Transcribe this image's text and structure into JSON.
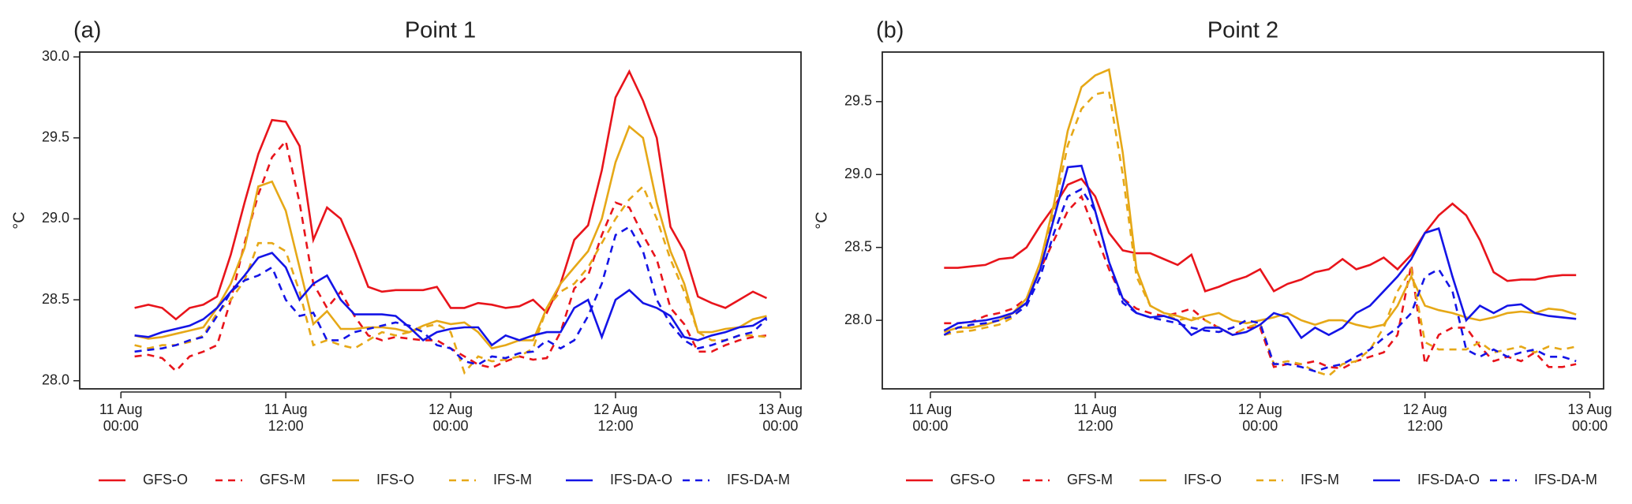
{
  "chart_data": [
    {
      "type": "line",
      "panel_label": "(a)",
      "title": "Point 1",
      "ylabel": "°C",
      "x": [
        "11 Aug 01:00",
        "11 Aug 02:00",
        "11 Aug 03:00",
        "11 Aug 04:00",
        "11 Aug 05:00",
        "11 Aug 06:00",
        "11 Aug 07:00",
        "11 Aug 08:00",
        "11 Aug 09:00",
        "11 Aug 10:00",
        "11 Aug 11:00",
        "11 Aug 12:00",
        "11 Aug 13:00",
        "11 Aug 14:00",
        "11 Aug 15:00",
        "11 Aug 16:00",
        "11 Aug 17:00",
        "11 Aug 18:00",
        "11 Aug 19:00",
        "11 Aug 20:00",
        "11 Aug 21:00",
        "11 Aug 22:00",
        "11 Aug 23:00",
        "12 Aug 00:00",
        "12 Aug 01:00",
        "12 Aug 02:00",
        "12 Aug 03:00",
        "12 Aug 04:00",
        "12 Aug 05:00",
        "12 Aug 06:00",
        "12 Aug 07:00",
        "12 Aug 08:00",
        "12 Aug 09:00",
        "12 Aug 10:00",
        "12 Aug 11:00",
        "12 Aug 12:00",
        "12 Aug 13:00",
        "12 Aug 14:00",
        "12 Aug 15:00",
        "12 Aug 16:00",
        "12 Aug 17:00",
        "12 Aug 18:00",
        "12 Aug 19:00",
        "12 Aug 20:00",
        "12 Aug 21:00",
        "12 Aug 22:00",
        "12 Aug 23:00"
      ],
      "xlim": [
        "10 Aug 21:00",
        "13 Aug 01:30"
      ],
      "xticks": [
        "11 Aug 00:00",
        "11 Aug 12:00",
        "12 Aug 00:00",
        "12 Aug 12:00",
        "13 Aug 00:00"
      ],
      "ylim": [
        27.95,
        30.03
      ],
      "yticks": [
        {
          "value": 28,
          "label": "28.0"
        },
        28.5,
        {
          "value": 29,
          "label": "29.0"
        },
        29.5,
        {
          "value": 30,
          "label": "30.0"
        }
      ],
      "series": [
        {
          "name": "GFS-O",
          "color": "#e8141b",
          "linestyle": "solid",
          "values": [
            28.45,
            28.47,
            28.45,
            28.38,
            28.45,
            28.47,
            28.52,
            28.78,
            29.1,
            29.4,
            29.61,
            29.6,
            29.45,
            28.87,
            29.07,
            29.0,
            28.8,
            28.58,
            28.55,
            28.56,
            28.56,
            28.56,
            28.58,
            28.45,
            28.45,
            28.48,
            28.47,
            28.45,
            28.46,
            28.5,
            28.42,
            28.6,
            28.87,
            28.96,
            29.3,
            29.75,
            29.91,
            29.73,
            29.5,
            28.95,
            28.8,
            28.52,
            28.48,
            28.45,
            28.5,
            28.55,
            28.51
          ]
        },
        {
          "name": "GFS-M",
          "color": "#e8141b",
          "linestyle": "dashed",
          "values": [
            28.15,
            28.16,
            28.14,
            28.06,
            28.15,
            28.18,
            28.22,
            28.5,
            28.85,
            29.15,
            29.38,
            29.48,
            29.1,
            28.6,
            28.45,
            28.55,
            28.4,
            28.28,
            28.25,
            28.27,
            28.26,
            28.25,
            28.25,
            28.2,
            28.15,
            28.1,
            28.08,
            28.12,
            28.15,
            28.13,
            28.14,
            28.3,
            28.57,
            28.65,
            28.9,
            29.1,
            29.07,
            28.9,
            28.75,
            28.45,
            28.35,
            28.18,
            28.18,
            28.22,
            28.25,
            28.27,
            28.28
          ]
        },
        {
          "name": "IFS-O",
          "color": "#e6a817",
          "linestyle": "solid",
          "values": [
            28.28,
            28.26,
            28.27,
            28.29,
            28.31,
            28.33,
            28.45,
            28.6,
            28.82,
            29.2,
            29.23,
            29.05,
            28.7,
            28.35,
            28.43,
            28.32,
            28.32,
            28.33,
            28.33,
            28.32,
            28.3,
            28.34,
            28.37,
            28.35,
            28.36,
            28.3,
            28.2,
            28.22,
            28.25,
            28.25,
            28.45,
            28.6,
            28.7,
            28.8,
            29.0,
            29.35,
            29.57,
            29.5,
            29.1,
            28.8,
            28.6,
            28.3,
            28.3,
            28.32,
            28.33,
            28.38,
            28.4
          ]
        },
        {
          "name": "IFS-M",
          "color": "#e6a817",
          "linestyle": "dashed",
          "values": [
            28.22,
            28.2,
            28.22,
            28.22,
            28.24,
            28.28,
            28.42,
            28.5,
            28.62,
            28.85,
            28.85,
            28.8,
            28.55,
            28.22,
            28.25,
            28.22,
            28.2,
            28.25,
            28.3,
            28.28,
            28.3,
            28.33,
            28.35,
            28.3,
            28.05,
            28.15,
            28.12,
            28.13,
            28.15,
            28.2,
            28.45,
            28.55,
            28.6,
            28.7,
            28.85,
            29.0,
            29.12,
            29.2,
            29.0,
            28.75,
            28.55,
            28.3,
            28.25,
            28.25,
            28.28,
            28.28,
            28.27
          ]
        },
        {
          "name": "IFS-DA-O",
          "color": "#1414e6",
          "linestyle": "solid",
          "values": [
            28.28,
            28.27,
            28.3,
            28.32,
            28.34,
            28.38,
            28.45,
            28.55,
            28.65,
            28.76,
            28.79,
            28.7,
            28.5,
            28.6,
            28.65,
            28.5,
            28.41,
            28.41,
            28.41,
            28.4,
            28.33,
            28.25,
            28.3,
            28.32,
            28.33,
            28.33,
            28.22,
            28.28,
            28.25,
            28.28,
            28.3,
            28.3,
            28.45,
            28.5,
            28.27,
            28.5,
            28.56,
            28.48,
            28.45,
            28.4,
            28.27,
            28.25,
            28.28,
            28.3,
            28.33,
            28.34,
            28.39
          ]
        },
        {
          "name": "IFS-DA-M",
          "color": "#1414e6",
          "linestyle": "dashed",
          "values": [
            28.18,
            28.19,
            28.2,
            28.22,
            28.25,
            28.27,
            28.4,
            28.55,
            28.62,
            28.65,
            28.7,
            28.5,
            28.4,
            28.42,
            28.25,
            28.25,
            28.3,
            28.32,
            28.34,
            28.36,
            28.34,
            28.3,
            28.22,
            28.2,
            28.12,
            28.1,
            28.15,
            28.14,
            28.17,
            28.18,
            28.25,
            28.2,
            28.25,
            28.4,
            28.6,
            28.9,
            28.95,
            28.8,
            28.5,
            28.35,
            28.25,
            28.2,
            28.22,
            28.25,
            28.28,
            28.3,
            28.38
          ]
        }
      ]
    },
    {
      "type": "line",
      "panel_label": "(b)",
      "title": "Point 2",
      "ylabel": "°C",
      "x": [
        "11 Aug 01:00",
        "11 Aug 02:00",
        "11 Aug 03:00",
        "11 Aug 04:00",
        "11 Aug 05:00",
        "11 Aug 06:00",
        "11 Aug 07:00",
        "11 Aug 08:00",
        "11 Aug 09:00",
        "11 Aug 10:00",
        "11 Aug 11:00",
        "11 Aug 12:00",
        "11 Aug 13:00",
        "11 Aug 14:00",
        "11 Aug 15:00",
        "11 Aug 16:00",
        "11 Aug 17:00",
        "11 Aug 18:00",
        "11 Aug 19:00",
        "11 Aug 20:00",
        "11 Aug 21:00",
        "11 Aug 22:00",
        "11 Aug 23:00",
        "12 Aug 00:00",
        "12 Aug 01:00",
        "12 Aug 02:00",
        "12 Aug 03:00",
        "12 Aug 04:00",
        "12 Aug 05:00",
        "12 Aug 06:00",
        "12 Aug 07:00",
        "12 Aug 08:00",
        "12 Aug 09:00",
        "12 Aug 10:00",
        "12 Aug 11:00",
        "12 Aug 12:00",
        "12 Aug 13:00",
        "12 Aug 14:00",
        "12 Aug 15:00",
        "12 Aug 16:00",
        "12 Aug 17:00",
        "12 Aug 18:00",
        "12 Aug 19:00",
        "12 Aug 20:00",
        "12 Aug 21:00",
        "12 Aug 22:00",
        "12 Aug 23:00"
      ],
      "xlim": [
        "10 Aug 20:30",
        "13 Aug 01:00"
      ],
      "xticks": [
        "11 Aug 00:00",
        "11 Aug 12:00",
        "12 Aug 00:00",
        "12 Aug 12:00",
        "13 Aug 00:00"
      ],
      "ylim": [
        27.53,
        29.84
      ],
      "yticks": [
        {
          "value": 28,
          "label": "28.0"
        },
        28.5,
        {
          "value": 29,
          "label": "29.0"
        },
        29.5
      ],
      "series": [
        {
          "name": "GFS-O",
          "color": "#e8141b",
          "linestyle": "solid",
          "values": [
            28.36,
            28.36,
            28.37,
            28.38,
            28.42,
            28.43,
            28.5,
            28.65,
            28.78,
            28.93,
            28.97,
            28.85,
            28.6,
            28.48,
            28.46,
            28.46,
            28.42,
            28.38,
            28.45,
            28.2,
            28.23,
            28.27,
            28.3,
            28.35,
            28.2,
            28.25,
            28.28,
            28.33,
            28.35,
            28.42,
            28.35,
            28.38,
            28.43,
            28.35,
            28.45,
            28.6,
            28.72,
            28.8,
            28.72,
            28.55,
            28.33,
            28.27,
            28.28,
            28.28,
            28.3,
            28.31,
            28.31
          ]
        },
        {
          "name": "GFS-M",
          "color": "#e8141b",
          "linestyle": "dashed",
          "values": [
            27.98,
            27.98,
            27.99,
            28.03,
            28.05,
            28.08,
            28.15,
            28.35,
            28.55,
            28.75,
            28.85,
            28.6,
            28.35,
            28.15,
            28.08,
            28.05,
            28.03,
            28.05,
            28.08,
            28.0,
            27.95,
            27.9,
            27.95,
            27.95,
            27.68,
            27.7,
            27.7,
            27.72,
            27.68,
            27.67,
            27.72,
            27.75,
            27.78,
            27.9,
            28.38,
            27.7,
            27.9,
            27.95,
            27.95,
            27.82,
            27.72,
            27.75,
            27.72,
            27.78,
            27.68,
            27.68,
            27.7
          ]
        },
        {
          "name": "IFS-O",
          "color": "#e6a817",
          "linestyle": "solid",
          "values": [
            27.92,
            27.95,
            27.95,
            27.97,
            28.0,
            28.05,
            28.15,
            28.4,
            28.8,
            29.3,
            29.6,
            29.68,
            29.72,
            29.15,
            28.35,
            28.1,
            28.05,
            28.03,
            28.0,
            28.03,
            28.05,
            28.0,
            27.98,
            28.0,
            28.02,
            28.05,
            28.0,
            27.97,
            28.0,
            28.0,
            27.97,
            27.95,
            27.97,
            28.1,
            28.3,
            28.1,
            28.07,
            28.05,
            28.02,
            28.0,
            28.02,
            28.05,
            28.06,
            28.05,
            28.08,
            28.07,
            28.04
          ]
        },
        {
          "name": "IFS-M",
          "color": "#e6a817",
          "linestyle": "dashed",
          "values": [
            27.9,
            27.92,
            27.93,
            27.95,
            27.97,
            28.02,
            28.12,
            28.35,
            28.75,
            29.2,
            29.45,
            29.55,
            29.57,
            29.0,
            28.3,
            28.1,
            28.05,
            28.0,
            28.02,
            28.0,
            27.95,
            27.9,
            27.95,
            27.98,
            27.7,
            27.72,
            27.7,
            27.65,
            27.62,
            27.7,
            27.72,
            27.8,
            27.95,
            28.2,
            28.35,
            27.85,
            27.8,
            27.8,
            27.8,
            27.85,
            27.78,
            27.8,
            27.82,
            27.78,
            27.82,
            27.8,
            27.82
          ]
        },
        {
          "name": "IFS-DA-O",
          "color": "#1414e6",
          "linestyle": "solid",
          "values": [
            27.93,
            27.98,
            27.99,
            28.0,
            28.02,
            28.05,
            28.12,
            28.35,
            28.7,
            29.05,
            29.06,
            28.75,
            28.4,
            28.15,
            28.05,
            28.02,
            28.03,
            28.0,
            27.9,
            27.95,
            27.95,
            27.9,
            27.92,
            27.97,
            28.05,
            28.02,
            27.88,
            27.95,
            27.9,
            27.95,
            28.05,
            28.1,
            28.2,
            28.3,
            28.42,
            28.6,
            28.63,
            28.3,
            28.0,
            28.1,
            28.05,
            28.1,
            28.11,
            28.05,
            28.03,
            28.02,
            28.01
          ]
        },
        {
          "name": "IFS-DA-M",
          "color": "#1414e6",
          "linestyle": "dashed",
          "values": [
            27.9,
            27.95,
            27.97,
            27.98,
            28.0,
            28.03,
            28.1,
            28.3,
            28.6,
            28.85,
            28.9,
            28.75,
            28.4,
            28.12,
            28.05,
            28.02,
            28.0,
            27.98,
            27.95,
            27.93,
            27.92,
            27.95,
            28.0,
            27.98,
            27.7,
            27.7,
            27.68,
            27.65,
            27.68,
            27.7,
            27.75,
            27.8,
            27.88,
            27.95,
            28.05,
            28.3,
            28.35,
            28.2,
            27.8,
            27.75,
            27.8,
            27.75,
            27.78,
            27.8,
            27.75,
            27.75,
            27.72
          ]
        }
      ]
    }
  ]
}
